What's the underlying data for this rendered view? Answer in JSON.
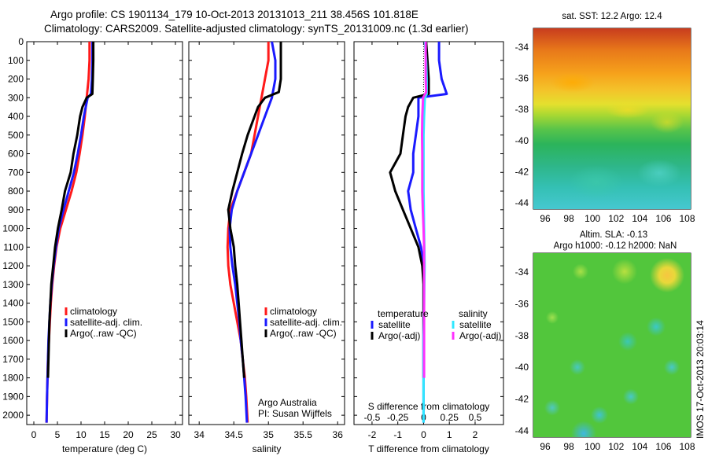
{
  "header": {
    "line1": "Argo profile: CS 1901134_179 10-Oct-2013 20131013_211 38.456S 101.818E",
    "line2": "Climatology: CARS2009. Satellite-adjusted climatology: synTS_20131009.nc (1.3d earlier)"
  },
  "colors": {
    "climatology": "#ff1a1a",
    "satellite": "#1a1aff",
    "argo": "#000000",
    "sat_salinity": "#30e8ff",
    "argo_salinity": "#ff30ff"
  },
  "depth_axis": {
    "range": [
      0,
      2050
    ],
    "ticks": [
      "0",
      "100",
      "200",
      "300",
      "400",
      "500",
      "600",
      "700",
      "800",
      "900",
      "1000",
      "1100",
      "1200",
      "1300",
      "1400",
      "1500",
      "1600",
      "1700",
      "1800",
      "1900",
      "2000"
    ]
  },
  "chart_data": [
    {
      "type": "line",
      "xlabel": "temperature (deg C)",
      "ylabel": "",
      "xlim": [
        -1.5,
        31.5
      ],
      "ylim": [
        2050,
        0
      ],
      "xticks": [
        "0",
        "5",
        "10",
        "15",
        "20",
        "25",
        "30"
      ],
      "legend": {
        "placement": "lower-middle",
        "entries": [
          "climatology",
          "satellite-adj. clim.",
          "Argo(..raw -QC)"
        ]
      },
      "series": [
        {
          "name": "climatology",
          "color": "#ff1a1a",
          "points": [
            [
              11.8,
              0
            ],
            [
              11.8,
              100
            ],
            [
              11.6,
              200
            ],
            [
              11.2,
              300
            ],
            [
              10.8,
              400
            ],
            [
              10.3,
              500
            ],
            [
              9.7,
              600
            ],
            [
              9.0,
              700
            ],
            [
              8.0,
              800
            ],
            [
              6.8,
              900
            ],
            [
              5.6,
              1000
            ],
            [
              4.8,
              1100
            ],
            [
              4.3,
              1200
            ],
            [
              3.9,
              1300
            ],
            [
              3.6,
              1400
            ],
            [
              3.4,
              1500
            ],
            [
              3.2,
              1600
            ],
            [
              3.0,
              1700
            ],
            [
              2.9,
              1800
            ],
            [
              2.8,
              1900
            ],
            [
              2.7,
              2040
            ]
          ]
        },
        {
          "name": "satellite-adj. clim.",
          "color": "#1a1aff",
          "points": [
            [
              12.4,
              0
            ],
            [
              12.4,
              100
            ],
            [
              12.3,
              200
            ],
            [
              12.1,
              280
            ],
            [
              11.4,
              300
            ],
            [
              10.6,
              400
            ],
            [
              10.0,
              500
            ],
            [
              9.3,
              600
            ],
            [
              8.5,
              700
            ],
            [
              7.4,
              800
            ],
            [
              6.3,
              900
            ],
            [
              5.3,
              1000
            ],
            [
              4.7,
              1100
            ],
            [
              4.2,
              1200
            ],
            [
              3.8,
              1300
            ],
            [
              3.5,
              1400
            ],
            [
              3.3,
              1500
            ],
            [
              3.1,
              1600
            ],
            [
              3.0,
              1700
            ],
            [
              2.9,
              1800
            ],
            [
              2.8,
              1900
            ],
            [
              2.7,
              2040
            ]
          ]
        },
        {
          "name": "Argo(..raw -QC)",
          "color": "#000000",
          "points": [
            [
              12.6,
              0
            ],
            [
              12.6,
              100
            ],
            [
              12.5,
              200
            ],
            [
              12.4,
              280
            ],
            [
              11.2,
              300
            ],
            [
              10.3,
              350
            ],
            [
              9.8,
              400
            ],
            [
              9.2,
              500
            ],
            [
              8.4,
              600
            ],
            [
              7.8,
              700
            ],
            [
              6.6,
              800
            ],
            [
              5.9,
              900
            ],
            [
              5.1,
              1000
            ],
            [
              4.5,
              1100
            ],
            [
              4.1,
              1200
            ],
            [
              3.7,
              1300
            ],
            [
              3.5,
              1400
            ],
            [
              3.3,
              1500
            ],
            [
              3.2,
              1600
            ],
            [
              3.1,
              1700
            ],
            [
              3.0,
              1800
            ]
          ]
        }
      ]
    },
    {
      "type": "line",
      "xlabel": "salinity",
      "ylabel": "",
      "xlim": [
        33.85,
        36.1
      ],
      "ylim": [
        2050,
        0
      ],
      "xticks": [
        "34",
        "34.5",
        "35",
        "35.5",
        "36"
      ],
      "legend": {
        "placement": "lower-right",
        "entries": [
          "climatology",
          "satellite-adj. clim.",
          "Argo(..raw -QC)"
        ]
      },
      "annotations": [
        "Argo Australia",
        "PI: Susan Wijffels"
      ],
      "series": [
        {
          "name": "climatology",
          "color": "#ff1a1a",
          "points": [
            [
              35.0,
              0
            ],
            [
              35.0,
              100
            ],
            [
              34.95,
              200
            ],
            [
              34.9,
              300
            ],
            [
              34.85,
              400
            ],
            [
              34.8,
              500
            ],
            [
              34.75,
              600
            ],
            [
              34.65,
              700
            ],
            [
              34.55,
              800
            ],
            [
              34.45,
              900
            ],
            [
              34.42,
              1000
            ],
            [
              34.41,
              1100
            ],
            [
              34.42,
              1200
            ],
            [
              34.45,
              1300
            ],
            [
              34.5,
              1400
            ],
            [
              34.55,
              1500
            ],
            [
              34.6,
              1600
            ],
            [
              34.63,
              1700
            ],
            [
              34.66,
              1800
            ],
            [
              34.68,
              1900
            ],
            [
              34.7,
              2040
            ]
          ]
        },
        {
          "name": "satellite-adj. clim.",
          "color": "#1a1aff",
          "points": [
            [
              35.05,
              0
            ],
            [
              35.1,
              100
            ],
            [
              35.1,
              200
            ],
            [
              35.05,
              300
            ],
            [
              34.95,
              400
            ],
            [
              34.85,
              500
            ],
            [
              34.75,
              600
            ],
            [
              34.65,
              700
            ],
            [
              34.55,
              800
            ],
            [
              34.47,
              900
            ],
            [
              34.44,
              1000
            ],
            [
              34.45,
              1100
            ],
            [
              34.48,
              1200
            ],
            [
              34.52,
              1300
            ],
            [
              34.55,
              1400
            ],
            [
              34.58,
              1500
            ],
            [
              34.6,
              1600
            ],
            [
              34.63,
              1700
            ],
            [
              34.65,
              1800
            ],
            [
              34.67,
              1900
            ],
            [
              34.69,
              2040
            ]
          ]
        },
        {
          "name": "Argo(..raw -QC)",
          "color": "#000000",
          "points": [
            [
              35.18,
              0
            ],
            [
              35.18,
              100
            ],
            [
              35.18,
              200
            ],
            [
              35.15,
              270
            ],
            [
              34.95,
              300
            ],
            [
              34.85,
              350
            ],
            [
              34.8,
              400
            ],
            [
              34.7,
              500
            ],
            [
              34.62,
              600
            ],
            [
              34.55,
              700
            ],
            [
              34.48,
              800
            ],
            [
              34.42,
              900
            ],
            [
              34.45,
              1000
            ],
            [
              34.5,
              1100
            ],
            [
              34.52,
              1200
            ],
            [
              34.55,
              1300
            ],
            [
              34.57,
              1400
            ],
            [
              34.59,
              1500
            ],
            [
              34.61,
              1600
            ],
            [
              34.63,
              1700
            ],
            [
              34.65,
              1800
            ]
          ]
        }
      ]
    },
    {
      "type": "line",
      "xlabel": "T difference from climatology",
      "xlabel_top": "S difference from climatology",
      "ylabel": "",
      "xlim": [
        -2.7,
        3.1
      ],
      "ylim": [
        2050,
        0
      ],
      "xticks": [
        "-2",
        "-1",
        "0",
        "1",
        "2"
      ],
      "xticks_top": [
        "-0.5",
        "-0.25",
        "0",
        "0.25",
        "0.5"
      ],
      "legend": {
        "placement": "lower-middle",
        "titles": [
          "temperature",
          "salinity"
        ],
        "entries": [
          "satellite",
          "Argo(-adj)",
          "satellite",
          "Argo(-adj)"
        ]
      },
      "series": [
        {
          "name": "satellite",
          "group": "temperature",
          "color": "#1a1aff",
          "points": [
            [
              0.6,
              0
            ],
            [
              0.6,
              100
            ],
            [
              0.7,
              200
            ],
            [
              0.9,
              280
            ],
            [
              -0.2,
              300
            ],
            [
              -0.2,
              400
            ],
            [
              -0.3,
              500
            ],
            [
              -0.4,
              600
            ],
            [
              -0.4,
              700
            ],
            [
              -0.6,
              800
            ],
            [
              -0.5,
              900
            ],
            [
              -0.3,
              1000
            ],
            [
              -0.1,
              1100
            ],
            [
              0,
              1200
            ],
            [
              0,
              1400
            ],
            [
              0,
              1600
            ],
            [
              0,
              1800
            ],
            [
              0,
              2040
            ]
          ]
        },
        {
          "name": "Argo(-adj)",
          "group": "temperature",
          "color": "#000000",
          "points": [
            [
              0.1,
              0
            ],
            [
              0.15,
              100
            ],
            [
              0.2,
              200
            ],
            [
              0.2,
              280
            ],
            [
              -0.4,
              300
            ],
            [
              -0.6,
              350
            ],
            [
              -0.7,
              400
            ],
            [
              -0.8,
              500
            ],
            [
              -0.9,
              600
            ],
            [
              -1.3,
              700
            ],
            [
              -1.1,
              800
            ],
            [
              -0.8,
              900
            ],
            [
              -0.5,
              1000
            ],
            [
              -0.2,
              1100
            ],
            [
              -0.05,
              1200
            ],
            [
              0,
              1300
            ],
            [
              0,
              1500
            ],
            [
              0,
              1700
            ],
            [
              0,
              1800
            ]
          ]
        },
        {
          "name": "satellite",
          "group": "salinity",
          "color": "#30e8ff",
          "points": [
            [
              0.05,
              0
            ],
            [
              0.1,
              100
            ],
            [
              0.12,
              200
            ],
            [
              0.12,
              280
            ],
            [
              0.05,
              300
            ],
            [
              0.02,
              400
            ],
            [
              0,
              500
            ],
            [
              0,
              600
            ],
            [
              0,
              700
            ],
            [
              0,
              800
            ],
            [
              0.01,
              900
            ],
            [
              0.02,
              1000
            ],
            [
              0.03,
              1100
            ],
            [
              0.04,
              1200
            ],
            [
              0.03,
              1300
            ],
            [
              0.02,
              1400
            ],
            [
              0.01,
              1500
            ],
            [
              0,
              1600
            ],
            [
              0,
              1800
            ],
            [
              0,
              2040
            ]
          ]
        },
        {
          "name": "Argo(-adj)",
          "group": "salinity",
          "color": "#ff30ff",
          "points": [
            [
              0.08,
              0
            ],
            [
              0.08,
              100
            ],
            [
              0.08,
              200
            ],
            [
              0.1,
              270
            ],
            [
              -0.02,
              300
            ],
            [
              -0.05,
              400
            ],
            [
              -0.06,
              500
            ],
            [
              -0.05,
              600
            ],
            [
              -0.05,
              700
            ],
            [
              -0.05,
              800
            ],
            [
              -0.03,
              900
            ],
            [
              0,
              1000
            ],
            [
              0.02,
              1100
            ],
            [
              0.02,
              1200
            ],
            [
              0.02,
              1300
            ],
            [
              0.02,
              1400
            ],
            [
              0.02,
              1500
            ],
            [
              0.02,
              1600
            ],
            [
              0.02,
              1700
            ],
            [
              0.02,
              1800
            ]
          ]
        }
      ]
    }
  ],
  "sst_map": {
    "title": "sat. SST: 12.2  Argo: 12.4",
    "yticks": [
      "-34",
      "-36",
      "-38",
      "-40",
      "-42",
      "-44"
    ],
    "xticks": [
      "96",
      "98",
      "100",
      "102",
      "104",
      "106",
      "108"
    ],
    "colormap": "jet",
    "marker_lon": 101.818,
    "marker_lat": -38.456
  },
  "sla_map": {
    "title_line1": "Altim. SLA: -0.13",
    "title_line2": "Argo h1000: -0.12  h2000: NaN",
    "yticks": [
      "-34",
      "-36",
      "-38",
      "-40",
      "-42",
      "-44"
    ],
    "xticks": [
      "96",
      "98",
      "100",
      "102",
      "104",
      "106",
      "108"
    ],
    "colormap": "jet",
    "marker_lon": 101.818,
    "marker_lat": -38.456
  },
  "stamp": "IMOS 17-Oct-2013 20:03:14"
}
